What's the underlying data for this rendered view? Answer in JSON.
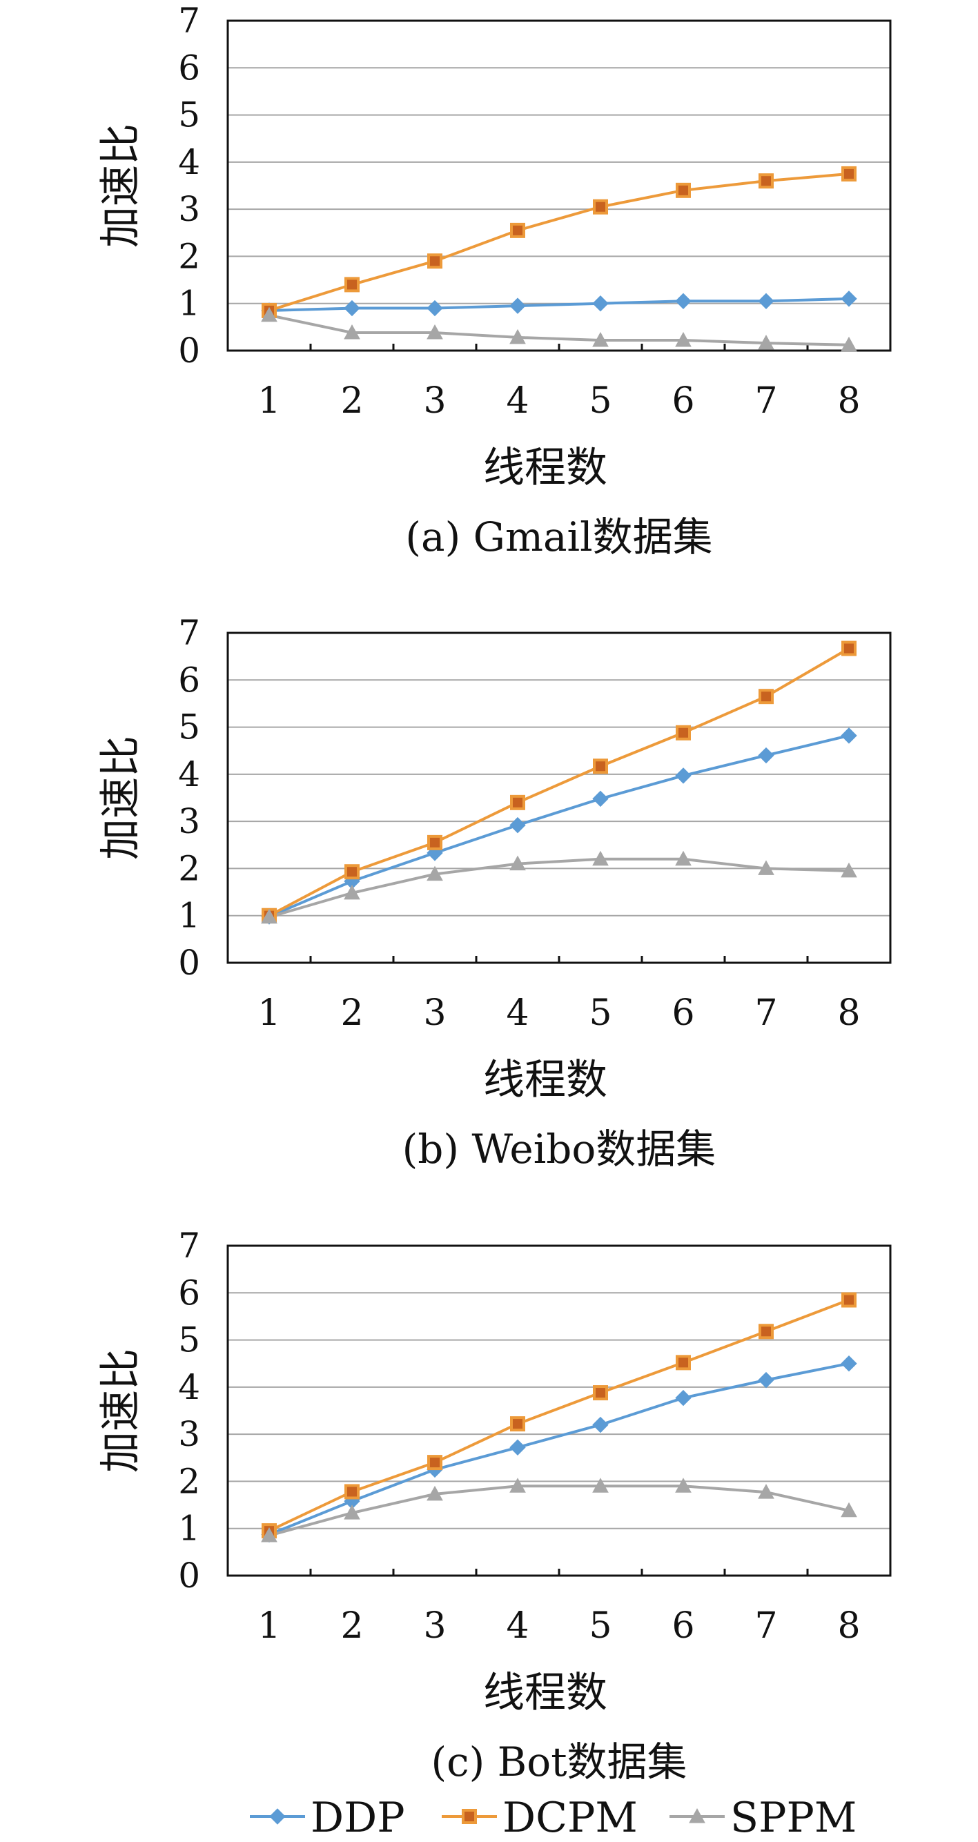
{
  "chart_data": [
    {
      "type": "line",
      "caption": "(a) Gmail数据集",
      "xlabel": "线程数",
      "ylabel": "加速比",
      "categories": [
        "1",
        "2",
        "3",
        "4",
        "5",
        "6",
        "7",
        "8"
      ],
      "ylim": [
        0,
        7
      ],
      "yticks": [
        0,
        1,
        2,
        3,
        4,
        5,
        6,
        7
      ],
      "grid": true,
      "series": [
        {
          "name": "DDP",
          "values": [
            0.85,
            0.9,
            0.9,
            0.95,
            1.0,
            1.05,
            1.05,
            1.1
          ]
        },
        {
          "name": "DCPM",
          "values": [
            0.85,
            1.4,
            1.9,
            2.55,
            3.05,
            3.4,
            3.6,
            3.75
          ]
        },
        {
          "name": "SPPM",
          "values": [
            0.75,
            0.38,
            0.38,
            0.28,
            0.22,
            0.22,
            0.16,
            0.12
          ]
        }
      ]
    },
    {
      "type": "line",
      "caption": "(b) Weibo数据集",
      "xlabel": "线程数",
      "ylabel": "加速比",
      "categories": [
        "1",
        "2",
        "3",
        "4",
        "5",
        "6",
        "7",
        "8"
      ],
      "ylim": [
        0,
        7
      ],
      "yticks": [
        0,
        1,
        2,
        3,
        4,
        5,
        6,
        7
      ],
      "grid": true,
      "series": [
        {
          "name": "DDP",
          "values": [
            0.98,
            1.73,
            2.33,
            2.92,
            3.48,
            3.97,
            4.4,
            4.82
          ]
        },
        {
          "name": "DCPM",
          "values": [
            1.0,
            1.93,
            2.55,
            3.4,
            4.17,
            4.88,
            5.65,
            6.67
          ]
        },
        {
          "name": "SPPM",
          "values": [
            0.97,
            1.48,
            1.88,
            2.1,
            2.2,
            2.2,
            2.0,
            1.95
          ]
        }
      ]
    },
    {
      "type": "line",
      "caption": "(c) Bot数据集",
      "xlabel": "线程数",
      "ylabel": "加速比",
      "categories": [
        "1",
        "2",
        "3",
        "4",
        "5",
        "6",
        "7",
        "8"
      ],
      "ylim": [
        0,
        7
      ],
      "yticks": [
        0,
        1,
        2,
        3,
        4,
        5,
        6,
        7
      ],
      "grid": true,
      "series": [
        {
          "name": "DDP",
          "values": [
            0.87,
            1.58,
            2.25,
            2.72,
            3.2,
            3.77,
            4.15,
            4.5
          ]
        },
        {
          "name": "DCPM",
          "values": [
            0.95,
            1.78,
            2.4,
            3.22,
            3.88,
            4.52,
            5.18,
            5.85
          ]
        },
        {
          "name": "SPPM",
          "values": [
            0.85,
            1.33,
            1.73,
            1.9,
            1.9,
            1.9,
            1.77,
            1.38
          ]
        }
      ]
    }
  ],
  "legend": [
    {
      "name": "DDP",
      "color": "#5b9bd5",
      "marker": "diamond"
    },
    {
      "name": "DCPM",
      "color": "#ed9a3a",
      "marker": "square"
    },
    {
      "name": "SPPM",
      "color": "#a6a6a6",
      "marker": "triangle"
    }
  ],
  "colors": {
    "DDP": "#5b9bd5",
    "DCPM": "#ed9a3a",
    "SPPM": "#a6a6a6",
    "grid": "#a6a6a6",
    "axis": "#111111"
  }
}
